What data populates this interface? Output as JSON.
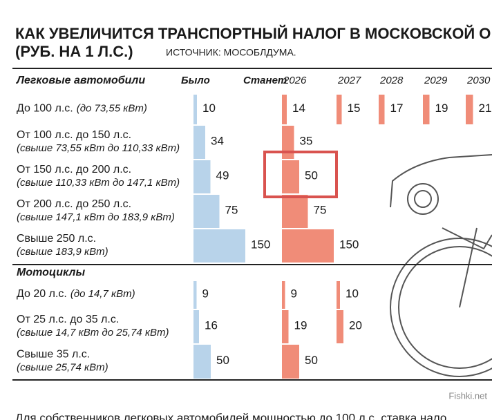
{
  "title": "КАК УВЕЛИЧИТСЯ ТРАНСПОРТНЫЙ НАЛОГ В МОСКОВСКОЙ О",
  "subtitle": "(РУБ. НА 1 Л.С.)",
  "source": "ИСТОЧНИК: МОСОБЛДУМА.",
  "columns": {
    "was": "Было",
    "will": "Станет",
    "years": [
      "2026",
      "2027",
      "2028",
      "2029",
      "2030"
    ]
  },
  "sections": [
    {
      "name": "Легковые автомобили",
      "rows": [
        {
          "label": "До 100 л.с.",
          "sub": "(до 73,55 кВт)",
          "values": [
            10,
            14,
            15,
            17,
            19,
            21
          ]
        },
        {
          "label": "От 100 л.с. до 150 л.с.",
          "sub": "(свыше 73,55 кВт до 110,33 кВт)",
          "values": [
            34,
            35
          ]
        },
        {
          "label": "От 150 л.с. до 200 л.с.",
          "sub": "(свыше 110,33 кВт до 147,1 кВт)",
          "values": [
            49,
            50
          ]
        },
        {
          "label": "От 200 л.с. до 250 л.с.",
          "sub": "(свыше 147,1 кВт до 183,9 кВт)",
          "values": [
            75,
            75
          ]
        },
        {
          "label": "Свыше 250 л.с.",
          "sub": "(свыше 183,9 кВт)",
          "values": [
            150,
            150
          ]
        }
      ]
    },
    {
      "name": "Мотоциклы",
      "rows": [
        {
          "label": "До 20 л.с.",
          "sub": "(до 14,7 кВт)",
          "values": [
            9,
            9,
            10
          ]
        },
        {
          "label": "От 25 л.с. до 35 л.с.",
          "sub": "(свыше 14,7 кВт до 25,74 кВт)",
          "values": [
            16,
            19,
            20
          ]
        },
        {
          "label": "Свыше 35 л.с.",
          "sub": "(свыше 25,74 кВт)",
          "values": [
            50,
            50
          ]
        }
      ]
    }
  ],
  "footer": "Для собственников легковых автомобилей мощностью до 100 л.с. ставка нало",
  "watermark": "Fishki.net"
}
